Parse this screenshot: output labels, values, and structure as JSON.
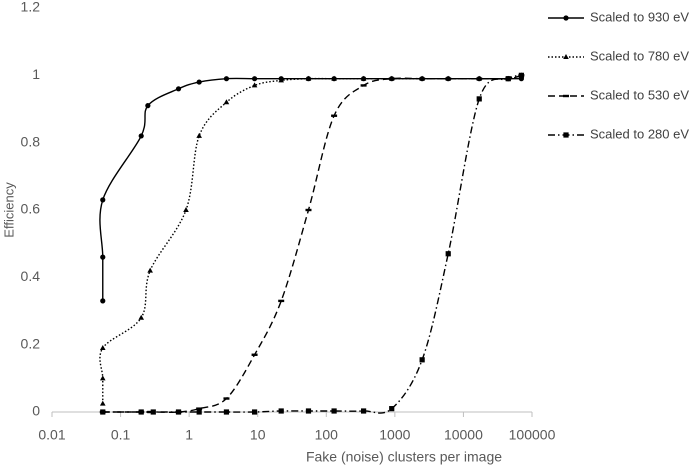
{
  "chart_data": {
    "type": "line",
    "xlabel": "Fake (noise) clusters per image",
    "ylabel": "Efficiency",
    "xscale": "log",
    "xlim": [
      0.01,
      100000
    ],
    "xticks": [
      0.01,
      0.1,
      1,
      10,
      100,
      1000,
      10000,
      100000
    ],
    "ylim": [
      0,
      1.2
    ],
    "yticks": [
      0,
      0.2,
      0.4,
      0.6,
      0.8,
      1,
      1.2
    ],
    "grid": false,
    "legend": "right",
    "series": [
      {
        "name": "Scaled to 930 eV",
        "color": "#000000",
        "dash": "solid",
        "marker": "circle",
        "x": [
          0.055,
          0.055,
          0.055,
          0.2,
          0.25,
          0.7,
          1.4,
          3.5,
          9,
          22,
          55,
          130,
          350,
          900,
          2500,
          6000,
          17000,
          45000,
          70000
        ],
        "values": [
          0.33,
          0.46,
          0.63,
          0.82,
          0.91,
          0.96,
          0.98,
          0.99,
          0.99,
          0.99,
          0.99,
          0.99,
          0.99,
          0.99,
          0.99,
          0.99,
          0.99,
          0.99,
          0.99
        ]
      },
      {
        "name": "Scaled to 780 eV",
        "color": "#000000",
        "dash": "dotted",
        "marker": "triangle",
        "x": [
          0.055,
          0.055,
          0.055,
          0.2,
          0.27,
          0.9,
          1.4,
          3.5,
          9,
          22,
          55,
          130,
          350,
          900,
          2500,
          6000,
          17000,
          45000,
          70000
        ],
        "values": [
          0.025,
          0.1,
          0.19,
          0.28,
          0.42,
          0.6,
          0.82,
          0.92,
          0.97,
          0.985,
          0.99,
          0.99,
          0.99,
          0.99,
          0.99,
          0.99,
          0.99,
          0.99,
          1.0
        ]
      },
      {
        "name": "Scaled to 530 eV",
        "color": "#000000",
        "dash": "dashed",
        "marker": "dash",
        "x": [
          0.055,
          0.2,
          0.27,
          0.7,
          1.4,
          3.5,
          9,
          22,
          55,
          130,
          350,
          900,
          2500,
          6000,
          17000,
          45000,
          70000
        ],
        "values": [
          0,
          0,
          0,
          0,
          0.01,
          0.04,
          0.17,
          0.33,
          0.6,
          0.88,
          0.97,
          0.99,
          0.99,
          0.99,
          0.99,
          0.99,
          1.0
        ]
      },
      {
        "name": "Scaled to 280 eV",
        "color": "#000000",
        "dash": "dashdot",
        "marker": "square",
        "x": [
          0.055,
          0.2,
          0.3,
          0.7,
          1.4,
          3.5,
          9,
          22,
          55,
          130,
          350,
          900,
          2500,
          6000,
          17000,
          45000,
          70000
        ],
        "values": [
          0,
          0,
          0,
          0,
          0,
          0,
          0,
          0.003,
          0.003,
          0.003,
          0.003,
          0.01,
          0.155,
          0.47,
          0.93,
          0.99,
          1.0
        ]
      }
    ]
  }
}
